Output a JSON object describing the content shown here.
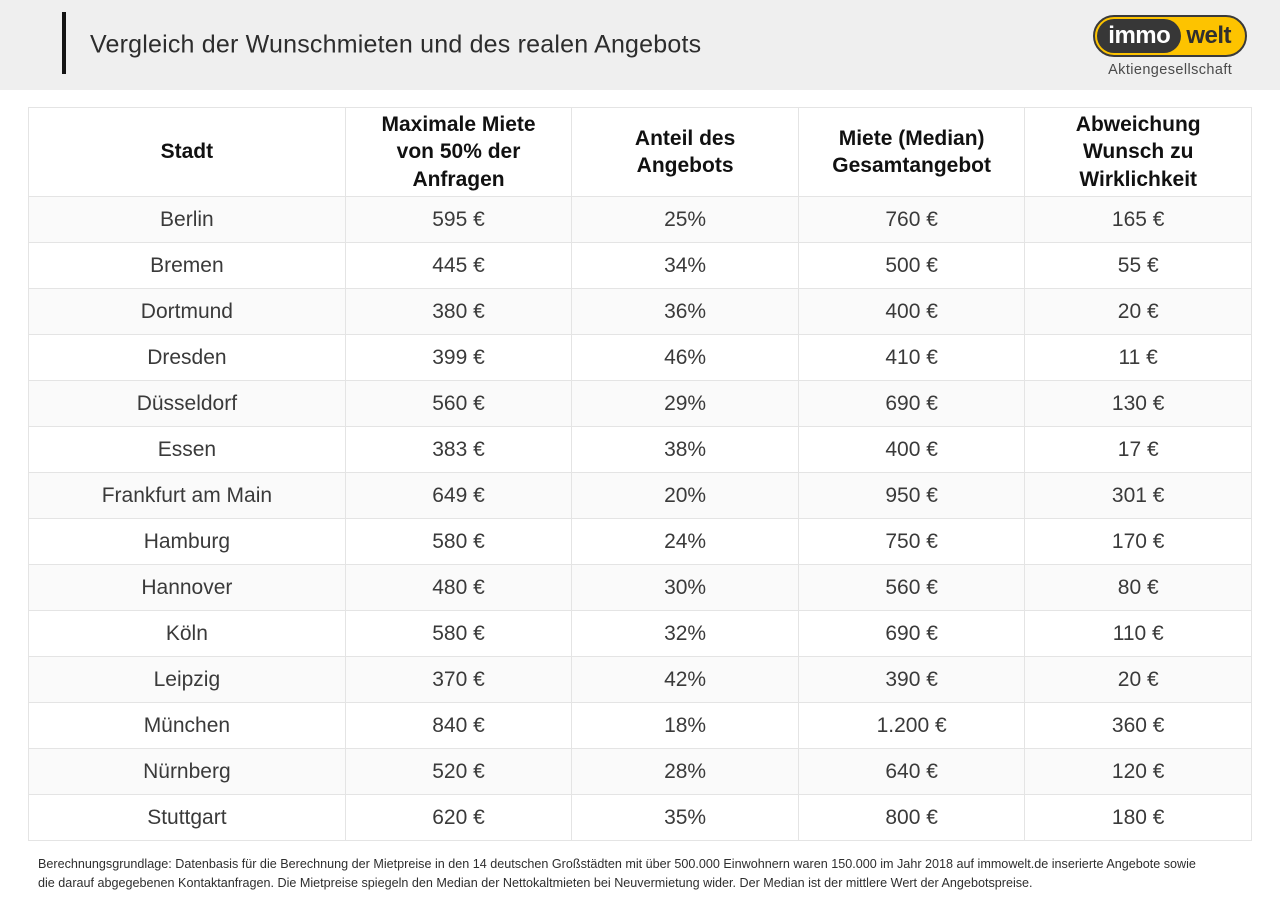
{
  "header": {
    "title": "Vergleich der Wunschmieten und des realen Angebots",
    "logo": {
      "brand_part1": "immo",
      "brand_part2": "welt",
      "subtitle": "Aktiengesellschaft"
    }
  },
  "chart_data": {
    "type": "table",
    "title": "Vergleich der Wunschmieten und des realen Angebots",
    "columns": [
      "Stadt",
      "Maximale Miete von 50% der Anfragen",
      "Anteil des Angebots",
      "Miete (Median) Gesamtangebot",
      "Abweichung Wunsch zu Wirklichkeit"
    ],
    "rows": [
      [
        "Berlin",
        "595 €",
        "25%",
        "760 €",
        "165 €"
      ],
      [
        "Bremen",
        "445 €",
        "34%",
        "500 €",
        "55 €"
      ],
      [
        "Dortmund",
        "380 €",
        "36%",
        "400 €",
        "20 €"
      ],
      [
        "Dresden",
        "399 €",
        "46%",
        "410 €",
        "11 €"
      ],
      [
        "Düsseldorf",
        "560 €",
        "29%",
        "690 €",
        "130 €"
      ],
      [
        "Essen",
        "383 €",
        "38%",
        "400 €",
        "17 €"
      ],
      [
        "Frankfurt am Main",
        "649 €",
        "20%",
        "950 €",
        "301 €"
      ],
      [
        "Hamburg",
        "580 €",
        "24%",
        "750 €",
        "170 €"
      ],
      [
        "Hannover",
        "480 €",
        "30%",
        "560 €",
        "80 €"
      ],
      [
        "Köln",
        "580 €",
        "32%",
        "690 €",
        "110 €"
      ],
      [
        "Leipzig",
        "370 €",
        "42%",
        "390 €",
        "20 €"
      ],
      [
        "München",
        "840 €",
        "18%",
        "1.200 €",
        "360 €"
      ],
      [
        "Nürnberg",
        "520 €",
        "28%",
        "640 €",
        "120 €"
      ],
      [
        "Stuttgart",
        "620 €",
        "35%",
        "800 €",
        "180 €"
      ]
    ]
  },
  "footnote": "Berechnungsgrundlage: Datenbasis für die Berechnung der Mietpreise in den 14 deutschen Großstädten mit über 500.000 Einwohnern waren 150.000 im Jahr 2018 auf immowelt.de inserierte Angebote sowie die darauf abgegebenen Kontaktanfragen. Die Mietpreise spiegeln den Median der Nettokaltmieten bei Neuvermietung wider. Der Median ist der mittlere Wert der Angebotspreise.",
  "colors": {
    "brand_yellow": "#fdc300",
    "brand_dark": "#373737",
    "topbar_bg": "#efefef",
    "accent_bar": "#141414",
    "table_border": "#e4e4e4"
  }
}
